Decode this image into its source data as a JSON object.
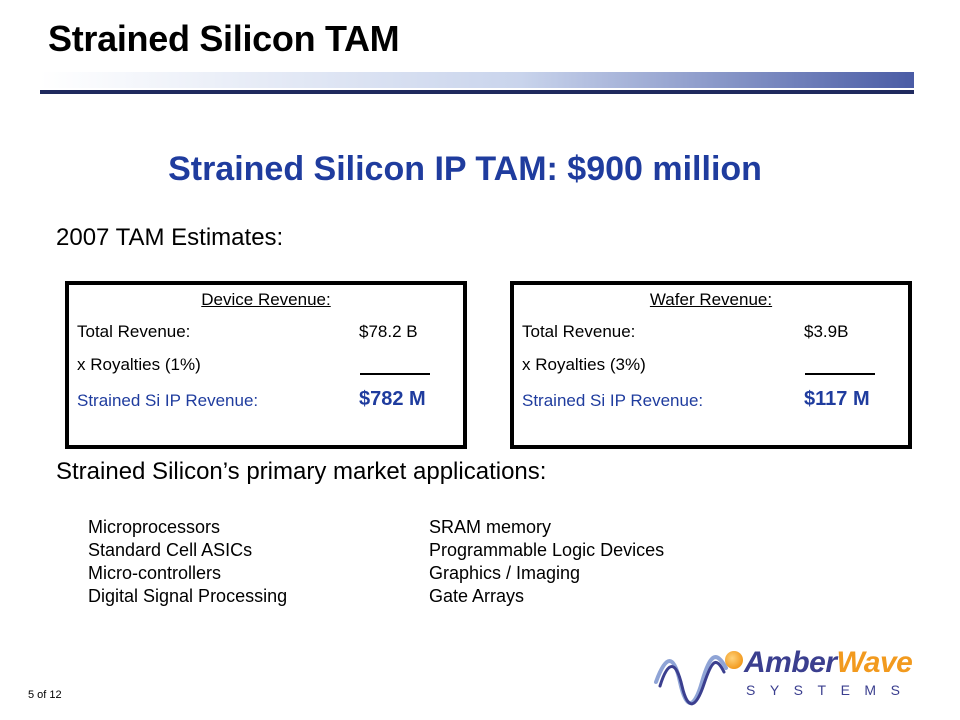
{
  "slide": {
    "title": "Strained Silicon TAM",
    "headline": "Strained Silicon IP TAM: $900 million",
    "estimates_heading": "2007 TAM Estimates:",
    "page_number": "5 of 12"
  },
  "device_box": {
    "heading": "Device Revenue:",
    "total_label": "Total Revenue:",
    "total_value": "$78.2 B",
    "royalty_label": "x Royalties (1%)",
    "ip_label": "Strained Si IP Revenue:",
    "ip_value": "$782 M"
  },
  "wafer_box": {
    "heading": "Wafer Revenue:",
    "total_label": "Total Revenue:",
    "total_value": "$3.9B",
    "royalty_label": "x Royalties (3%)",
    "ip_label": "Strained Si IP Revenue:",
    "ip_value": "$117 M"
  },
  "applications": {
    "heading": "Strained Silicon’s primary market applications:",
    "left": [
      "Microprocessors",
      "Standard Cell ASICs",
      "Micro-controllers",
      "Digital Signal Processing"
    ],
    "right": [
      "SRAM memory",
      "Programmable Logic Devices",
      "Graphics / Imaging",
      "Gate Arrays"
    ]
  },
  "logo": {
    "word_part1": "Amber",
    "word_part2": "Wave",
    "subtitle": "SYSTEMS",
    "colors": {
      "navy": "#3b3f8f",
      "orange": "#f29a1e"
    }
  },
  "colors": {
    "accent_blue": "#1f3c9e",
    "rule_dark": "#1f2a5e"
  }
}
